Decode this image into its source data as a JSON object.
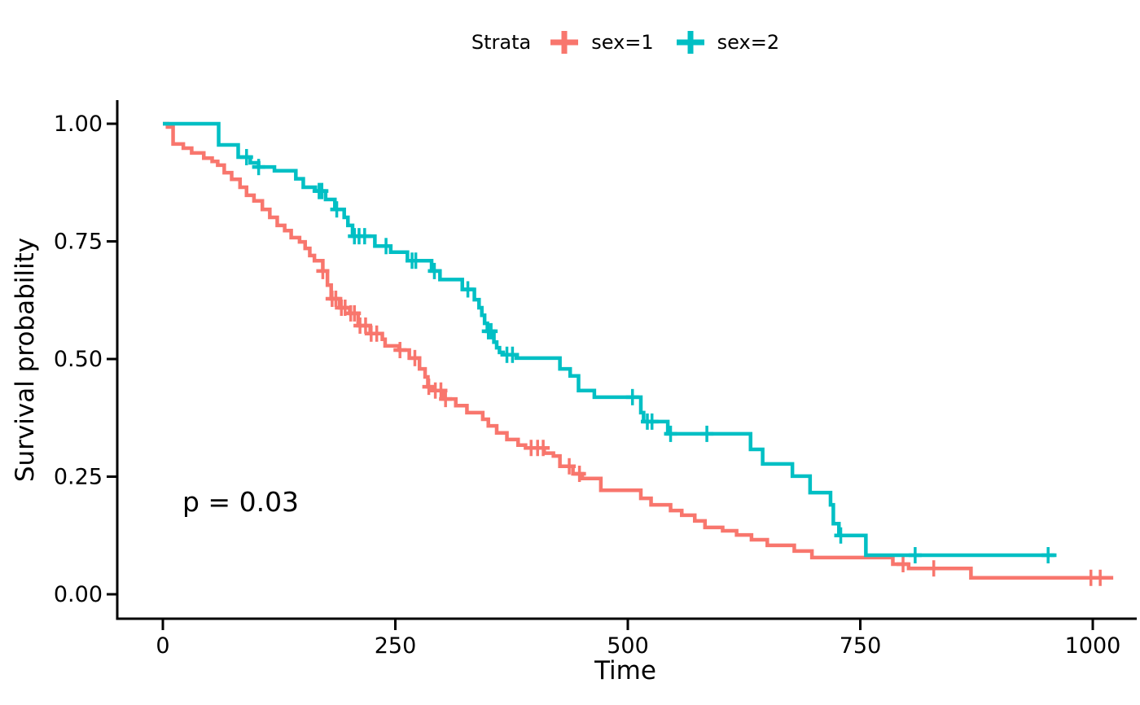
{
  "legend": {
    "title": "Strata",
    "items": [
      {
        "label": "sex=1",
        "color": "#F8766D"
      },
      {
        "label": "sex=2",
        "color": "#00BFC4"
      }
    ]
  },
  "chart_data": {
    "type": "line",
    "subtype": "kaplan-meier-step",
    "title": "",
    "xlabel": "Time",
    "ylabel": "Survival probability",
    "xlim": [
      0,
      1045
    ],
    "ylim": [
      0,
      1
    ],
    "grid": false,
    "legend_position": "top",
    "annotation": {
      "text": "p = 0.03",
      "x": 22,
      "y": 0.2
    },
    "x_ticks": [
      {
        "label": "0",
        "value": 0
      },
      {
        "label": "250",
        "value": 250
      },
      {
        "label": "500",
        "value": 500
      },
      {
        "label": "750",
        "value": 750
      },
      {
        "label": "1000",
        "value": 1000
      }
    ],
    "y_ticks": [
      {
        "label": "0.00",
        "value": 0
      },
      {
        "label": "0.25",
        "value": 0.25
      },
      {
        "label": "0.50",
        "value": 0.5
      },
      {
        "label": "0.75",
        "value": 0.75
      },
      {
        "label": "1.00",
        "value": 1
      }
    ],
    "series": [
      {
        "name": "sex=1",
        "color": "#F8766D",
        "points": [
          [
            0,
            1.0
          ],
          [
            5,
            0.993
          ],
          [
            11,
            0.957
          ],
          [
            22,
            0.948
          ],
          [
            31,
            0.938
          ],
          [
            44,
            0.927
          ],
          [
            53,
            0.92
          ],
          [
            59,
            0.912
          ],
          [
            66,
            0.896
          ],
          [
            74,
            0.882
          ],
          [
            83,
            0.865
          ],
          [
            90,
            0.848
          ],
          [
            98,
            0.836
          ],
          [
            107,
            0.818
          ],
          [
            115,
            0.801
          ],
          [
            123,
            0.784
          ],
          [
            131,
            0.773
          ],
          [
            138,
            0.758
          ],
          [
            147,
            0.749
          ],
          [
            153,
            0.735
          ],
          [
            158,
            0.72
          ],
          [
            163,
            0.709
          ],
          [
            172,
            0.687
          ],
          [
            177,
            0.657
          ],
          [
            181,
            0.628
          ],
          [
            190,
            0.609
          ],
          [
            201,
            0.597
          ],
          [
            210,
            0.571
          ],
          [
            223,
            0.554
          ],
          [
            236,
            0.542
          ],
          [
            239,
            0.528
          ],
          [
            254,
            0.519
          ],
          [
            265,
            0.502
          ],
          [
            276,
            0.479
          ],
          [
            282,
            0.462
          ],
          [
            285,
            0.441
          ],
          [
            291,
            0.433
          ],
          [
            301,
            0.415
          ],
          [
            315,
            0.401
          ],
          [
            327,
            0.386
          ],
          [
            344,
            0.372
          ],
          [
            350,
            0.358
          ],
          [
            359,
            0.343
          ],
          [
            370,
            0.329
          ],
          [
            382,
            0.317
          ],
          [
            390,
            0.311
          ],
          [
            410,
            0.3
          ],
          [
            420,
            0.294
          ],
          [
            427,
            0.272
          ],
          [
            441,
            0.256
          ],
          [
            451,
            0.246
          ],
          [
            471,
            0.221
          ],
          [
            514,
            0.204
          ],
          [
            525,
            0.19
          ],
          [
            546,
            0.178
          ],
          [
            558,
            0.168
          ],
          [
            572,
            0.156
          ],
          [
            583,
            0.142
          ],
          [
            602,
            0.135
          ],
          [
            617,
            0.126
          ],
          [
            633,
            0.116
          ],
          [
            650,
            0.104
          ],
          [
            679,
            0.092
          ],
          [
            698,
            0.078
          ],
          [
            785,
            0.064
          ],
          [
            802,
            0.055
          ],
          [
            869,
            0.035
          ],
          [
            1022,
            0.035
          ]
        ],
        "censor_times": [
          172,
          182,
          186,
          192,
          196,
          202,
          206,
          212,
          218,
          224,
          230,
          255,
          271,
          286,
          293,
          299,
          304,
          396,
          403,
          409,
          437,
          448,
          796,
          829,
          998,
          1008
        ]
      },
      {
        "name": "sex=2",
        "color": "#00BFC4",
        "points": [
          [
            0,
            1.0
          ],
          [
            60,
            0.955
          ],
          [
            81,
            0.929
          ],
          [
            94,
            0.917
          ],
          [
            103,
            0.908
          ],
          [
            120,
            0.9
          ],
          [
            143,
            0.883
          ],
          [
            151,
            0.865
          ],
          [
            164,
            0.857
          ],
          [
            175,
            0.839
          ],
          [
            185,
            0.818
          ],
          [
            195,
            0.801
          ],
          [
            199,
            0.784
          ],
          [
            204,
            0.761
          ],
          [
            228,
            0.74
          ],
          [
            245,
            0.727
          ],
          [
            263,
            0.709
          ],
          [
            289,
            0.687
          ],
          [
            298,
            0.669
          ],
          [
            322,
            0.648
          ],
          [
            335,
            0.626
          ],
          [
            340,
            0.609
          ],
          [
            343,
            0.593
          ],
          [
            346,
            0.576
          ],
          [
            349,
            0.559
          ],
          [
            356,
            0.536
          ],
          [
            359,
            0.524
          ],
          [
            362,
            0.514
          ],
          [
            366,
            0.509
          ],
          [
            380,
            0.502
          ],
          [
            427,
            0.479
          ],
          [
            438,
            0.464
          ],
          [
            447,
            0.433
          ],
          [
            464,
            0.419
          ],
          [
            514,
            0.386
          ],
          [
            517,
            0.367
          ],
          [
            543,
            0.341
          ],
          [
            632,
            0.308
          ],
          [
            645,
            0.277
          ],
          [
            677,
            0.251
          ],
          [
            696,
            0.216
          ],
          [
            718,
            0.19
          ],
          [
            721,
            0.15
          ],
          [
            727,
            0.125
          ],
          [
            756,
            0.083
          ],
          [
            961,
            0.083
          ]
        ],
        "censor_times": [
          90,
          103,
          168,
          171,
          187,
          206,
          211,
          217,
          240,
          268,
          272,
          292,
          328,
          350,
          353,
          370,
          376,
          505,
          521,
          526,
          546,
          585,
          729,
          809,
          952
        ]
      }
    ]
  }
}
